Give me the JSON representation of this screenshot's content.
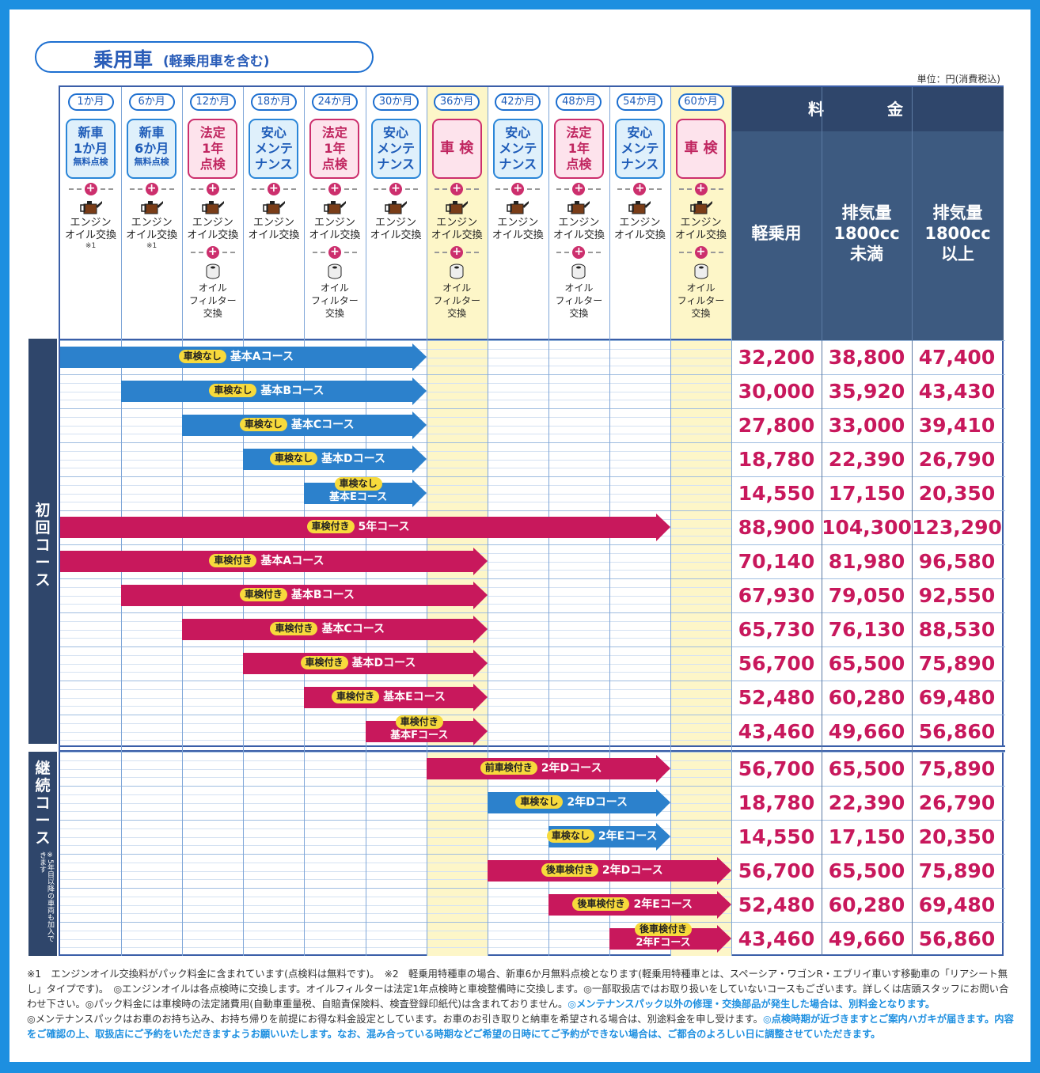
{
  "title": {
    "main": "乗用車",
    "sub": "(軽乗用車を含む)"
  },
  "unit": "単位：円(消費税込)",
  "months": [
    "1か月",
    "6か月",
    "12か月",
    "18か月",
    "24か月",
    "30か月",
    "36か月",
    "42か月",
    "48か月",
    "54か月",
    "60か月"
  ],
  "inspections": [
    {
      "lines": [
        "新車",
        "1か月"
      ],
      "small": "無料点検",
      "type": "blue"
    },
    {
      "lines": [
        "新車",
        "6か月"
      ],
      "small": "無料点検",
      "type": "blue"
    },
    {
      "lines": [
        "法定",
        "1年",
        "点検"
      ],
      "type": "pink"
    },
    {
      "lines": [
        "安心",
        "メンテ",
        "ナンス"
      ],
      "type": "blue"
    },
    {
      "lines": [
        "法定",
        "1年",
        "点検"
      ],
      "type": "pink"
    },
    {
      "lines": [
        "安心",
        "メンテ",
        "ナンス"
      ],
      "type": "blue"
    },
    {
      "lines": [
        "車 検"
      ],
      "type": "pink"
    },
    {
      "lines": [
        "安心",
        "メンテ",
        "ナンス"
      ],
      "type": "blue"
    },
    {
      "lines": [
        "法定",
        "1年",
        "点検"
      ],
      "type": "pink"
    },
    {
      "lines": [
        "安心",
        "メンテ",
        "ナンス"
      ],
      "type": "blue"
    },
    {
      "lines": [
        "車 検"
      ],
      "type": "pink"
    }
  ],
  "oil_label": "エンジンオイル交換",
  "oil_line1": "エンジン",
  "oil_line2": "オイル交換",
  "oil_note": "※1",
  "filter_line1": "オイル",
  "filter_line2": "フィルター",
  "filter_line3": "交換",
  "price_header": {
    "title": "料　金",
    "col1": "軽乗用",
    "col2": [
      "排気量",
      "1800cc",
      "未満"
    ],
    "col3": [
      "排気量",
      "1800cc",
      "以上"
    ]
  },
  "side_labels": {
    "first": "初回コース",
    "cont": "継続コース",
    "note": "※5年目以降の車両も加入できます"
  },
  "first_courses": [
    {
      "badge": "車検なし",
      "name": "基本Aコース",
      "prices": [
        "32,200",
        "38,800",
        "47,400"
      ]
    },
    {
      "badge": "車検なし",
      "name": "基本Bコース",
      "prices": [
        "30,000",
        "35,920",
        "43,430"
      ]
    },
    {
      "badge": "車検なし",
      "name": "基本Cコース",
      "prices": [
        "27,800",
        "33,000",
        "39,410"
      ]
    },
    {
      "badge": "車検なし",
      "name": "基本Dコース",
      "prices": [
        "18,780",
        "22,390",
        "26,790"
      ]
    },
    {
      "badge": "車検なし",
      "name": "基本Eコース",
      "prices": [
        "14,550",
        "17,150",
        "20,350"
      ]
    },
    {
      "badge": "車検付き",
      "name": "5年コース",
      "prices": [
        "88,900",
        "104,300",
        "123,290"
      ]
    },
    {
      "badge": "車検付き",
      "name": "基本Aコース",
      "prices": [
        "70,140",
        "81,980",
        "96,580"
      ]
    },
    {
      "badge": "車検付き",
      "name": "基本Bコース",
      "prices": [
        "67,930",
        "79,050",
        "92,550"
      ]
    },
    {
      "badge": "車検付き",
      "name": "基本Cコース",
      "prices": [
        "65,730",
        "76,130",
        "88,530"
      ]
    },
    {
      "badge": "車検付き",
      "name": "基本Dコース",
      "prices": [
        "56,700",
        "65,500",
        "75,890"
      ]
    },
    {
      "badge": "車検付き",
      "name": "基本Eコース",
      "prices": [
        "52,480",
        "60,280",
        "69,480"
      ]
    },
    {
      "badge": "車検付き",
      "name": "基本Fコース",
      "prices": [
        "43,460",
        "49,660",
        "56,860"
      ]
    }
  ],
  "cont_courses": [
    {
      "badge": "前車検付き",
      "name": "2年Dコース",
      "prices": [
        "56,700",
        "65,500",
        "75,890"
      ]
    },
    {
      "badge": "車検なし",
      "name": "2年Dコース",
      "prices": [
        "18,780",
        "22,390",
        "26,790"
      ]
    },
    {
      "badge": "車検なし",
      "name": "2年Eコース",
      "prices": [
        "14,550",
        "17,150",
        "20,350"
      ]
    },
    {
      "badge": "後車検付き",
      "name": "2年Dコース",
      "prices": [
        "56,700",
        "65,500",
        "75,890"
      ]
    },
    {
      "badge": "後車検付き",
      "name": "2年Eコース",
      "prices": [
        "52,480",
        "60,280",
        "69,480"
      ]
    },
    {
      "badge": "後車検付き",
      "name": "2年Fコース",
      "prices": [
        "43,460",
        "49,660",
        "56,860"
      ]
    }
  ],
  "footnotes": {
    "p1": "※1　エンジンオイル交換料がパック料金に含まれています(点検料は無料です)。　※2　軽乗用特種車の場合、新車6か月無料点検となります(軽乗用特種車とは、スペーシア・ワゴンR・エブリイ車いす移動車の「リアシート無し」タイプです)。　◎エンジンオイルは各点検時に交換します。オイルフィルターは法定1年点検時と車検整備時に交換します。◎一部取扱店ではお取り扱いをしていないコースもございます。詳しくは店頭スタッフにお問い合わせ下さい。◎パック料金には車検時の法定諸費用(自動車重量税、自賠責保険料、検査登録印紙代)は含まれておりません。",
    "p1_blue": "◎メンテナンスパック以外の修理・交換部品が発生した場合は、別料金となります。",
    "p2": "◎メンテナンスパックはお車のお持ち込み、お持ち帰りを前提にお得な料金設定としています。お車のお引き取りと納車を希望される場合は、別途料金を申し受けます。",
    "p2_blue": "◎点検時期が近づきますとご案内ハガキが届きます。内容をご確認の上、取扱店にご予約をいただきますようお願いいたします。なお、混み合っている時期などご希望の日時にてご予約ができない場合は、ご都合のよろしい日に調整させていただきます。"
  },
  "colors": {
    "blue": "#2c81cc",
    "red": "#c8185c",
    "navy": "#2f466b",
    "yellow": "#fdf6c8",
    "frame": "#1d8fe0"
  }
}
